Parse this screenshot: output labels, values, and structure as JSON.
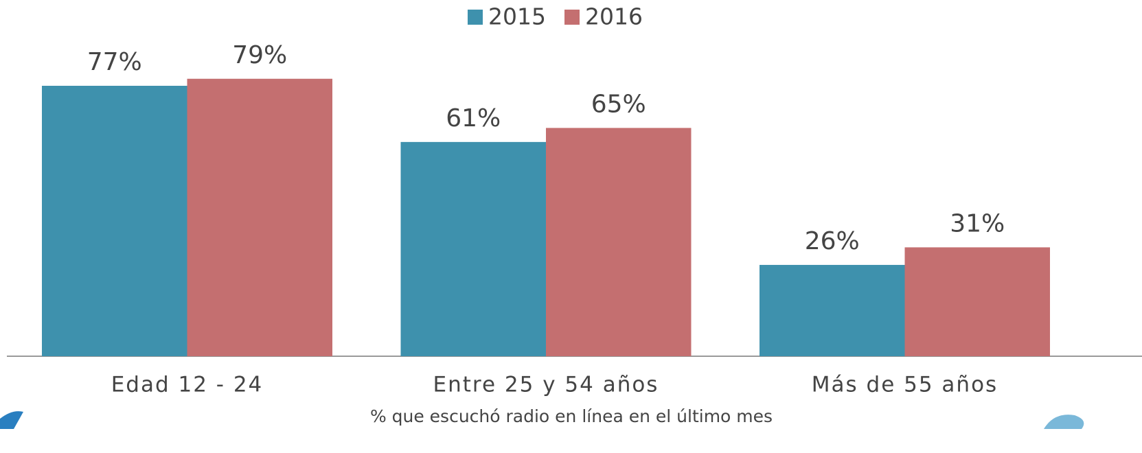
{
  "chart_data": {
    "type": "bar",
    "categories": [
      "Edad 12 - 24",
      "Entre 25 y 54 años",
      "Más de 55 años"
    ],
    "series": [
      {
        "name": "2015",
        "color": "#3e91ad",
        "values": [
          77,
          61,
          26
        ],
        "value_labels": [
          "77%",
          "61%",
          "26%"
        ]
      },
      {
        "name": "2016",
        "color": "#c46f70",
        "values": [
          79,
          65,
          31
        ],
        "value_labels": [
          "79%",
          "65%",
          "31%"
        ]
      }
    ],
    "x_label": "% que escuchó radio en línea en el último mes",
    "legend": "top"
  }
}
